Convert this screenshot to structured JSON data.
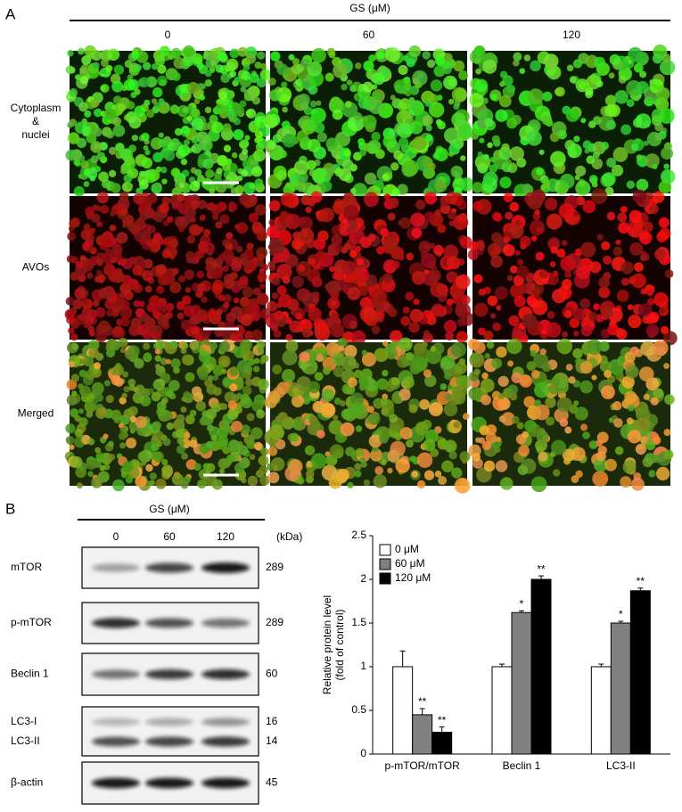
{
  "panel_a": {
    "label": "A",
    "header": "GS (μM)",
    "columns": [
      "0",
      "60",
      "120"
    ],
    "rows": [
      {
        "label_lines": [
          "Cytoplasm",
          "&",
          "nuclei"
        ]
      },
      {
        "label_lines": [
          "AVOs"
        ]
      },
      {
        "label_lines": [
          "Merged"
        ]
      }
    ]
  },
  "panel_b": {
    "label": "B",
    "header": "GS (μM)",
    "lanes": [
      "0",
      "60",
      "120"
    ],
    "unit": "(kDa)",
    "blots": [
      {
        "labels": [
          "mTOR"
        ],
        "kda": [
          "289"
        ]
      },
      {
        "labels": [
          "p-mTOR"
        ],
        "kda": [
          "289"
        ]
      },
      {
        "labels": [
          "Beclin 1"
        ],
        "kda": [
          "60"
        ]
      },
      {
        "labels": [
          "LC3-I",
          "LC3-II"
        ],
        "kda": [
          "16",
          "14"
        ]
      },
      {
        "labels": [
          "β-actin"
        ],
        "kda": [
          "45"
        ]
      }
    ]
  },
  "chart_data": {
    "type": "bar",
    "ylabel": [
      "Relative protein level",
      "(fold of control)"
    ],
    "categories": [
      "p-mTOR/mTOR",
      "Beclin 1",
      "LC3-II"
    ],
    "series": [
      {
        "name": "0 μM",
        "color": "#ffffff",
        "values": [
          1,
          1,
          1
        ],
        "errors": [
          0.18,
          0.03,
          0.03
        ]
      },
      {
        "name": "60 μM",
        "color": "#808080",
        "values": [
          0.45,
          1.62,
          1.5
        ],
        "errors": [
          0.07,
          0.02,
          0.02
        ],
        "annotations": [
          "**",
          "*",
          "*"
        ]
      },
      {
        "name": "120 μM",
        "color": "#000000",
        "values": [
          0.25,
          2.0,
          1.87
        ],
        "errors": [
          0.06,
          0.04,
          0.03
        ],
        "annotations": [
          "**",
          "**",
          "**"
        ]
      }
    ],
    "ylim": [
      0,
      2.5
    ],
    "yticks": [
      0,
      0.5,
      1,
      1.5,
      2,
      2.5
    ],
    "legend": "top-left"
  }
}
